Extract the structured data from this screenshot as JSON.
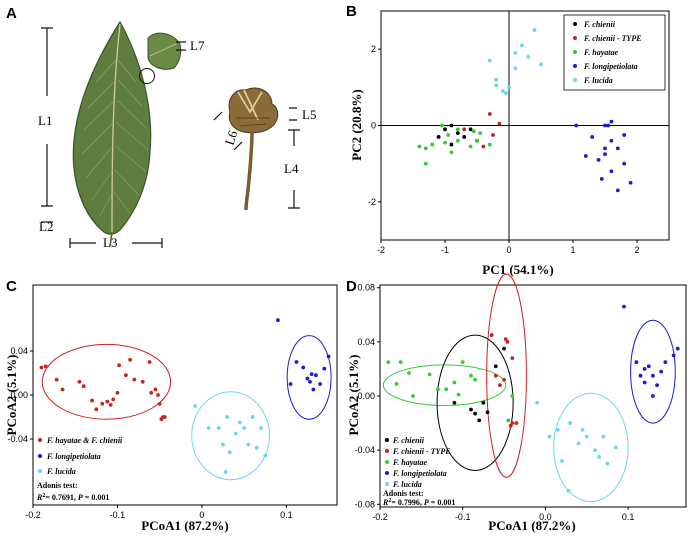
{
  "figure": {
    "panel_labels": {
      "a": "A",
      "b": "B",
      "c": "C",
      "d": "D"
    },
    "photo": {
      "leaf_labels": [
        "L1",
        "L2",
        "L3",
        "L7"
      ],
      "cupule_labels": [
        "L4",
        "L5",
        "L6"
      ]
    }
  },
  "colors": {
    "black": "#000000",
    "red": "#cc2020",
    "green": "#33cc33",
    "blue": "#1a1adb",
    "cyan": "#6ad6ee"
  },
  "chart_data": [
    {
      "id": "B",
      "type": "scatter",
      "xlabel": "PC1 (54.1%)",
      "ylabel": "PC2 (20.8%)",
      "xlim": [
        -2,
        2.5
      ],
      "ylim": [
        -3,
        3
      ],
      "xticks": [
        -2,
        -1,
        0,
        1,
        2
      ],
      "yticks": [
        -2,
        0,
        2
      ],
      "xtick_labels": [
        "-2",
        "-1",
        "0",
        "1",
        "2"
      ],
      "ytick_labels": [
        "-2",
        "0",
        "2"
      ],
      "legend_position": "top-right",
      "series": [
        {
          "name": "F. chienii",
          "color": "black",
          "points": [
            [
              -0.9,
              0.0
            ],
            [
              -1.0,
              -0.1
            ],
            [
              -0.8,
              -0.2
            ],
            [
              -0.7,
              -0.3
            ],
            [
              -0.9,
              -0.5
            ],
            [
              -0.5,
              -0.4
            ],
            [
              -0.6,
              -0.1
            ],
            [
              -1.1,
              -0.3
            ]
          ]
        },
        {
          "name": "F. chienii - TYPE",
          "color": "red",
          "points": [
            [
              -0.3,
              0.3
            ],
            [
              -0.15,
              0.05
            ],
            [
              -0.7,
              -0.1
            ],
            [
              -0.4,
              -0.55
            ],
            [
              -0.25,
              -0.25
            ]
          ]
        },
        {
          "name": "F. hayatae",
          "color": "green",
          "points": [
            [
              -1.3,
              -1.0
            ],
            [
              -1.3,
              -0.6
            ],
            [
              -1.2,
              -0.5
            ],
            [
              -1.0,
              -0.45
            ],
            [
              -0.9,
              -0.7
            ],
            [
              -0.8,
              -0.4
            ],
            [
              -0.6,
              -0.55
            ],
            [
              -0.5,
              -0.4
            ],
            [
              -0.55,
              -0.15
            ],
            [
              -0.8,
              -0.1
            ],
            [
              -0.45,
              -0.2
            ],
            [
              -0.3,
              -0.5
            ],
            [
              -1.05,
              0.0
            ],
            [
              -1.4,
              -0.55
            ],
            [
              -0.95,
              -0.25
            ]
          ]
        },
        {
          "name": "F. longipetiolata",
          "color": "blue",
          "points": [
            [
              1.5,
              0.0
            ],
            [
              1.6,
              -0.4
            ],
            [
              1.7,
              -0.6
            ],
            [
              1.4,
              -0.9
            ],
            [
              1.8,
              -1.0
            ],
            [
              1.9,
              -1.5
            ],
            [
              1.6,
              -1.2
            ],
            [
              1.3,
              -0.3
            ],
            [
              1.5,
              -0.6
            ],
            [
              1.7,
              -1.7
            ],
            [
              1.2,
              -0.8
            ],
            [
              1.45,
              -1.4
            ],
            [
              1.55,
              0.0
            ],
            [
              1.6,
              0.1
            ],
            [
              1.8,
              -0.25
            ],
            [
              1.5,
              -0.75
            ],
            [
              1.05,
              0.0
            ]
          ]
        },
        {
          "name": "F. lucida",
          "color": "cyan",
          "points": [
            [
              -0.3,
              1.7
            ],
            [
              -0.2,
              1.2
            ],
            [
              -0.1,
              0.9
            ],
            [
              0.0,
              1.0
            ],
            [
              0.1,
              1.5
            ],
            [
              0.3,
              1.8
            ],
            [
              0.2,
              2.1
            ],
            [
              0.5,
              1.6
            ],
            [
              0.1,
              1.9
            ],
            [
              -0.2,
              1.05
            ],
            [
              0.4,
              2.5
            ],
            [
              -0.05,
              0.85
            ]
          ]
        }
      ]
    },
    {
      "id": "C",
      "type": "scatter",
      "xlabel": "PCoA1 (87.2%)",
      "ylabel": "PCoA2 (5.1%)",
      "xlim": [
        -0.2,
        0.16
      ],
      "ylim": [
        -0.1,
        0.1
      ],
      "xticks": [
        -0.2,
        -0.1,
        0,
        0.1
      ],
      "yticks": [
        -0.04,
        0,
        0.04
      ],
      "xtick_labels": [
        "-0.2",
        "-0.1",
        "0",
        "0.1"
      ],
      "ytick_labels": [
        "-0.04",
        "0.00",
        "0.04"
      ],
      "legend_position": "bottom-left",
      "legend_title": "Adonis test:",
      "stat_r2": "= 0.7691, ",
      "stat_p": "= 0.001",
      "series": [
        {
          "name": "F. hayatae & F. chienii",
          "color": "red",
          "points": [
            [
              -0.19,
              0.025
            ],
            [
              -0.185,
              0.026
            ],
            [
              -0.172,
              0.014
            ],
            [
              -0.165,
              0.005
            ],
            [
              -0.145,
              0.012
            ],
            [
              -0.14,
              0.008
            ],
            [
              -0.13,
              -0.005
            ],
            [
              -0.125,
              -0.013
            ],
            [
              -0.118,
              -0.008
            ],
            [
              -0.112,
              -0.006
            ],
            [
              -0.108,
              -0.009
            ],
            [
              -0.105,
              -0.004
            ],
            [
              -0.1,
              0.002
            ],
            [
              -0.098,
              0.027
            ],
            [
              -0.09,
              0.018
            ],
            [
              -0.085,
              0.032
            ],
            [
              -0.08,
              0.014
            ],
            [
              -0.07,
              0.012
            ],
            [
              -0.062,
              0.03
            ],
            [
              -0.06,
              0.002
            ],
            [
              -0.055,
              0.005
            ],
            [
              -0.052,
              0.0
            ],
            [
              -0.05,
              -0.008
            ],
            [
              -0.048,
              -0.022
            ],
            [
              -0.046,
              -0.02
            ],
            [
              -0.044,
              -0.02
            ]
          ]
        },
        {
          "name": "F. longipetiolata",
          "color": "blue",
          "points": [
            [
              0.09,
              0.068
            ],
            [
              0.105,
              0.01
            ],
            [
              0.112,
              0.03
            ],
            [
              0.12,
              0.025
            ],
            [
              0.125,
              0.015
            ],
            [
              0.128,
              0.012
            ],
            [
              0.13,
              0.019
            ],
            [
              0.132,
              0.005
            ],
            [
              0.135,
              0.018
            ],
            [
              0.14,
              0.01
            ],
            [
              0.145,
              0.024
            ],
            [
              0.15,
              0.035
            ]
          ]
        },
        {
          "name": "F. lucida",
          "color": "cyan",
          "points": [
            [
              -0.008,
              -0.01
            ],
            [
              0.008,
              -0.03
            ],
            [
              0.02,
              -0.03
            ],
            [
              0.025,
              -0.045
            ],
            [
              0.03,
              -0.02
            ],
            [
              0.033,
              -0.052
            ],
            [
              0.04,
              -0.035
            ],
            [
              0.045,
              -0.025
            ],
            [
              0.05,
              -0.03
            ],
            [
              0.055,
              -0.045
            ],
            [
              0.06,
              -0.02
            ],
            [
              0.065,
              -0.048
            ],
            [
              0.07,
              -0.03
            ],
            [
              0.075,
              -0.055
            ],
            [
              0.028,
              -0.07
            ]
          ]
        }
      ]
    },
    {
      "id": "D",
      "type": "scatter",
      "xlabel": "PCoA1 (87.2%)",
      "ylabel": "PCoA2 (5.1%)",
      "xlim": [
        -0.2,
        0.17
      ],
      "ylim": [
        -0.082,
        0.082
      ],
      "xticks": [
        -0.2,
        -0.1,
        0,
        0.1
      ],
      "yticks": [
        -0.08,
        -0.04,
        0,
        0.04,
        0.08
      ],
      "xtick_labels": [
        "-0.2",
        "-0.1",
        "0.0",
        "0.1"
      ],
      "ytick_labels": [
        "-0.08",
        "-0.04",
        "0.00",
        "0.04",
        "0.08"
      ],
      "legend_position": "bottom-left",
      "legend_title": "Adonis test:",
      "stat_r2": "= 0.7996, ",
      "stat_p": "= 0.001",
      "series": [
        {
          "name": "F. chienii",
          "color": "black",
          "points": [
            [
              -0.11,
              -0.005
            ],
            [
              -0.09,
              -0.01
            ],
            [
              -0.085,
              -0.013
            ],
            [
              -0.08,
              -0.018
            ],
            [
              -0.075,
              -0.005
            ],
            [
              -0.07,
              -0.012
            ],
            [
              -0.05,
              0.035
            ],
            [
              -0.06,
              0.022
            ]
          ]
        },
        {
          "name": "F. chienii - TYPE",
          "color": "red",
          "points": [
            [
              -0.065,
              0.045
            ],
            [
              -0.048,
              0.042
            ],
            [
              -0.046,
              0.04
            ],
            [
              -0.04,
              0.028
            ],
            [
              -0.04,
              -0.02
            ],
            [
              -0.042,
              -0.022
            ],
            [
              -0.035,
              -0.02
            ],
            [
              -0.05,
              0.012
            ],
            [
              -0.055,
              0.008
            ],
            [
              -0.06,
              0.015
            ]
          ]
        },
        {
          "name": "F. hayatae",
          "color": "green",
          "points": [
            [
              -0.19,
              0.025
            ],
            [
              -0.18,
              0.009
            ],
            [
              -0.175,
              0.025
            ],
            [
              -0.165,
              0.017
            ],
            [
              -0.16,
              0.0
            ],
            [
              -0.14,
              0.016
            ],
            [
              -0.13,
              0.005
            ],
            [
              -0.12,
              0.005
            ],
            [
              -0.11,
              0.01
            ],
            [
              -0.105,
              0.001
            ],
            [
              -0.1,
              0.025
            ],
            [
              -0.09,
              0.015
            ],
            [
              -0.085,
              0.012
            ],
            [
              -0.045,
              -0.018
            ],
            [
              -0.04,
              0.0
            ]
          ]
        },
        {
          "name": "F. longipetiolata",
          "color": "blue",
          "points": [
            [
              0.095,
              0.066
            ],
            [
              0.11,
              0.025
            ],
            [
              0.115,
              0.015
            ],
            [
              0.12,
              0.02
            ],
            [
              0.125,
              0.022
            ],
            [
              0.13,
              0.015
            ],
            [
              0.135,
              0.008
            ],
            [
              0.14,
              0.018
            ],
            [
              0.145,
              0.025
            ],
            [
              0.155,
              0.03
            ],
            [
              0.16,
              0.035
            ],
            [
              0.12,
              0.01
            ],
            [
              0.13,
              0.0
            ]
          ]
        },
        {
          "name": "F. lucida",
          "color": "cyan",
          "points": [
            [
              -0.01,
              -0.005
            ],
            [
              0.005,
              -0.03
            ],
            [
              0.015,
              -0.025
            ],
            [
              0.02,
              -0.048
            ],
            [
              0.03,
              -0.02
            ],
            [
              0.04,
              -0.035
            ],
            [
              0.045,
              -0.025
            ],
            [
              0.05,
              -0.03
            ],
            [
              0.06,
              -0.04
            ],
            [
              0.065,
              -0.045
            ],
            [
              0.07,
              -0.03
            ],
            [
              0.075,
              -0.05
            ],
            [
              0.028,
              -0.07
            ],
            [
              0.085,
              -0.038
            ]
          ]
        }
      ]
    }
  ]
}
